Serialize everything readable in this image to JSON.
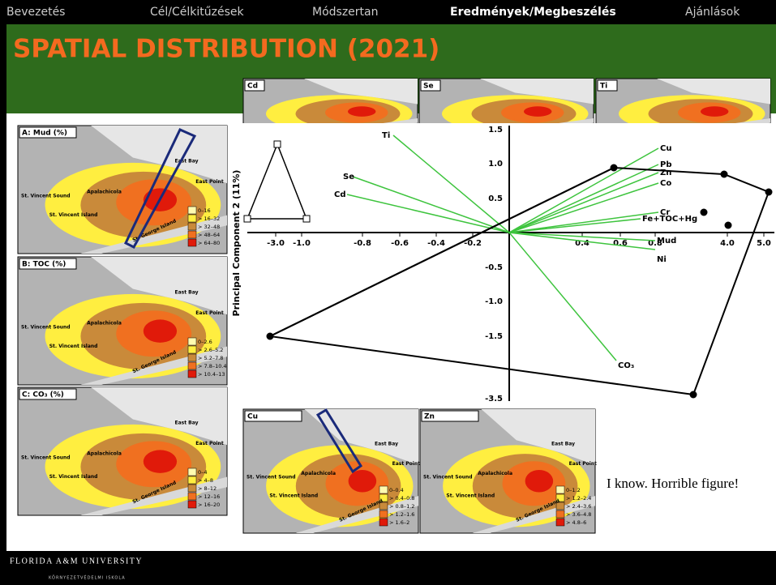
{
  "nav": [
    "Bevezetés",
    "Cél/Célkitűzések",
    "Módszertan",
    "Eredmények/Megbeszélés",
    "Ajánlások"
  ],
  "title": "SPATIAL DISTRIBUTION (2021)",
  "maps": {
    "left": [
      {
        "label": "A: Mud (%)",
        "legend": [
          "0–16",
          "> 16–32",
          "> 32–48",
          "> 48–64",
          "> 64–80"
        ]
      },
      {
        "label": "B: TOC (%)",
        "legend": [
          "0–2.6",
          "> 2.6–5.2",
          "> 5.2–7.8",
          "> 7.8–10.4",
          "> 10.4–13"
        ]
      },
      {
        "label": "C: CO₃ (%)",
        "legend": [
          "0–4",
          "> 4–8",
          "> 8–12",
          "> 12–16",
          "> 16–20"
        ]
      }
    ],
    "top": [
      "Cd",
      "Se",
      "Ti"
    ],
    "bottom": [
      {
        "label": "Cu",
        "legend": [
          "0–0.4",
          "> 0.4–0.8",
          "> 0.8–1.2",
          "> 1.2–1.6",
          "> 1.6–2"
        ]
      },
      {
        "label": "Zn",
        "legend": [
          "0–1.2",
          "> 1.2–2.4",
          "> 2.4–3.6",
          "> 3.6–4.8",
          "> 4.8–6"
        ]
      }
    ],
    "places": [
      "Apalachicola",
      "East Bay",
      "East Point",
      "St. Vincent Sound",
      "St. Vincent Island",
      "St. George Island"
    ]
  },
  "biplot": {
    "y_axis_label": "Principal Component 2 (11%)",
    "x_ticks": [
      "-3.0",
      "-1.0",
      "-0.8",
      "-0.6",
      "-0.4",
      "-0.2",
      "0.4",
      "0.6",
      "0.8",
      "4.0",
      "5.0"
    ],
    "y_ticks": [
      "1.5",
      "1.0",
      "0.5",
      "-0.5",
      "-1.0",
      "-1.5",
      "-3.5"
    ],
    "variables": [
      "Ti",
      "Se",
      "Cd",
      "Cu",
      "Pb",
      "Zn",
      "Co",
      "Cr",
      "Fe+TOC+Hg",
      "Mud",
      "Ni",
      "CO₃"
    ]
  },
  "caption": "I know. Horrible figure!",
  "footer": {
    "university": "FLORIDA A&M UNIVERSITY",
    "school": "KÖRNYEZETVÉDELMI ISKOLA"
  }
}
